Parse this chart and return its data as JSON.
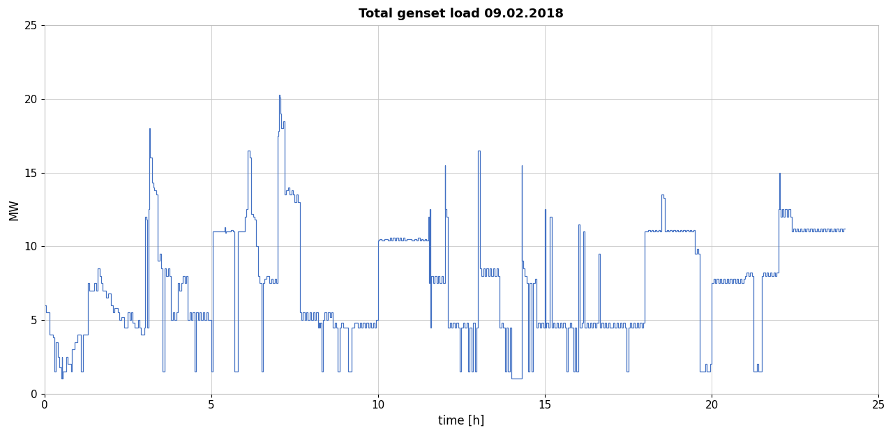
{
  "title": "Total genset load 09.02.2018",
  "xlabel": "time [h]",
  "ylabel": "MW",
  "xlim": [
    0,
    25
  ],
  "ylim": [
    0,
    25
  ],
  "xticks": [
    0,
    5,
    10,
    15,
    20,
    25
  ],
  "yticks": [
    0,
    5,
    10,
    15,
    20,
    25
  ],
  "line_color": "#4472c4",
  "line_width": 0.9,
  "background_color": "#ffffff",
  "title_fontsize": 13,
  "label_fontsize": 12,
  "tick_fontsize": 11,
  "grid_color": "#c8c8c8",
  "grid_linewidth": 0.6,
  "spine_color": "#c0c0c0"
}
